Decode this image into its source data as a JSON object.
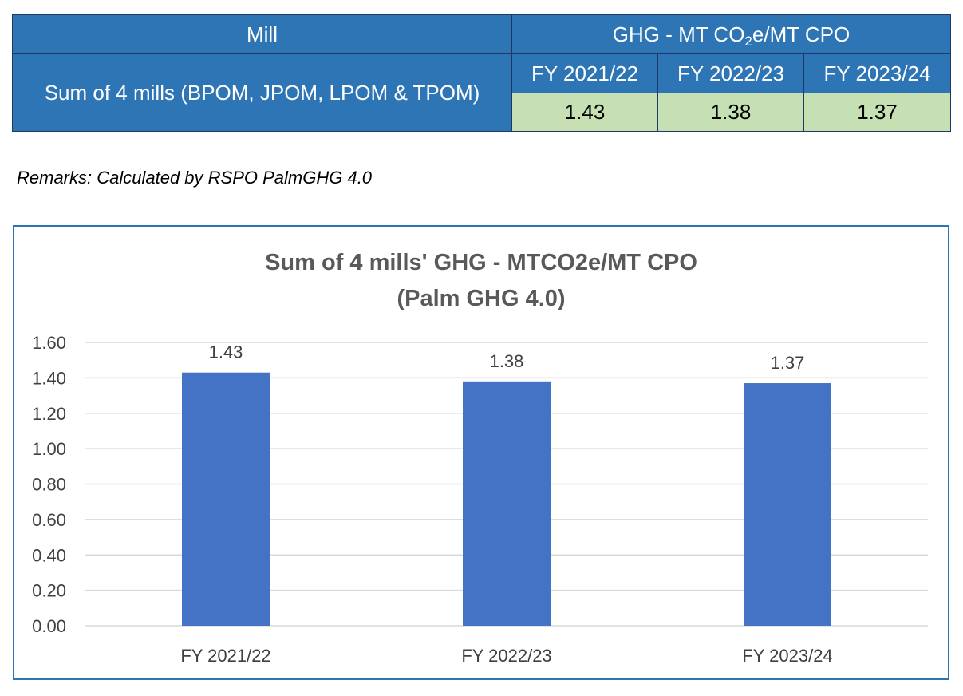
{
  "table": {
    "mill_header": "Mill",
    "ghg_header_prefix": "GHG - MT CO",
    "ghg_header_sub": "2",
    "ghg_header_suffix": "e/MT CPO",
    "row_label": "Sum of 4 mills (BPOM, JPOM, LPOM & TPOM)",
    "years": [
      "FY 2021/22",
      "FY 2022/23",
      "FY 2023/24"
    ],
    "values": [
      "1.43",
      "1.38",
      "1.37"
    ]
  },
  "remarks": "Remarks: Calculated by RSPO PalmGHG 4.0",
  "chart_data": {
    "type": "bar",
    "title_lines": [
      "Sum of 4 mills' GHG - MTCO2e/MT CPO",
      "(Palm GHG 4.0)"
    ],
    "categories": [
      "FY 2021/22",
      "FY 2022/23",
      "FY 2023/24"
    ],
    "values": [
      1.43,
      1.38,
      1.37
    ],
    "data_labels": [
      "1.43",
      "1.38",
      "1.37"
    ],
    "ylim": [
      0,
      1.6
    ],
    "y_ticks": [
      0,
      0.2,
      0.4,
      0.6,
      0.8,
      1.0,
      1.2,
      1.4,
      1.6
    ],
    "y_tick_labels": [
      "0.00",
      "0.20",
      "0.40",
      "0.60",
      "0.80",
      "1.00",
      "1.20",
      "1.40",
      "1.60"
    ],
    "grid": true,
    "legend": "none",
    "colors": {
      "bar": "#4472c4",
      "grid": "#d9d9d9",
      "title": "#595959",
      "axis_text": "#404040",
      "frame": "#2e75b6"
    }
  }
}
